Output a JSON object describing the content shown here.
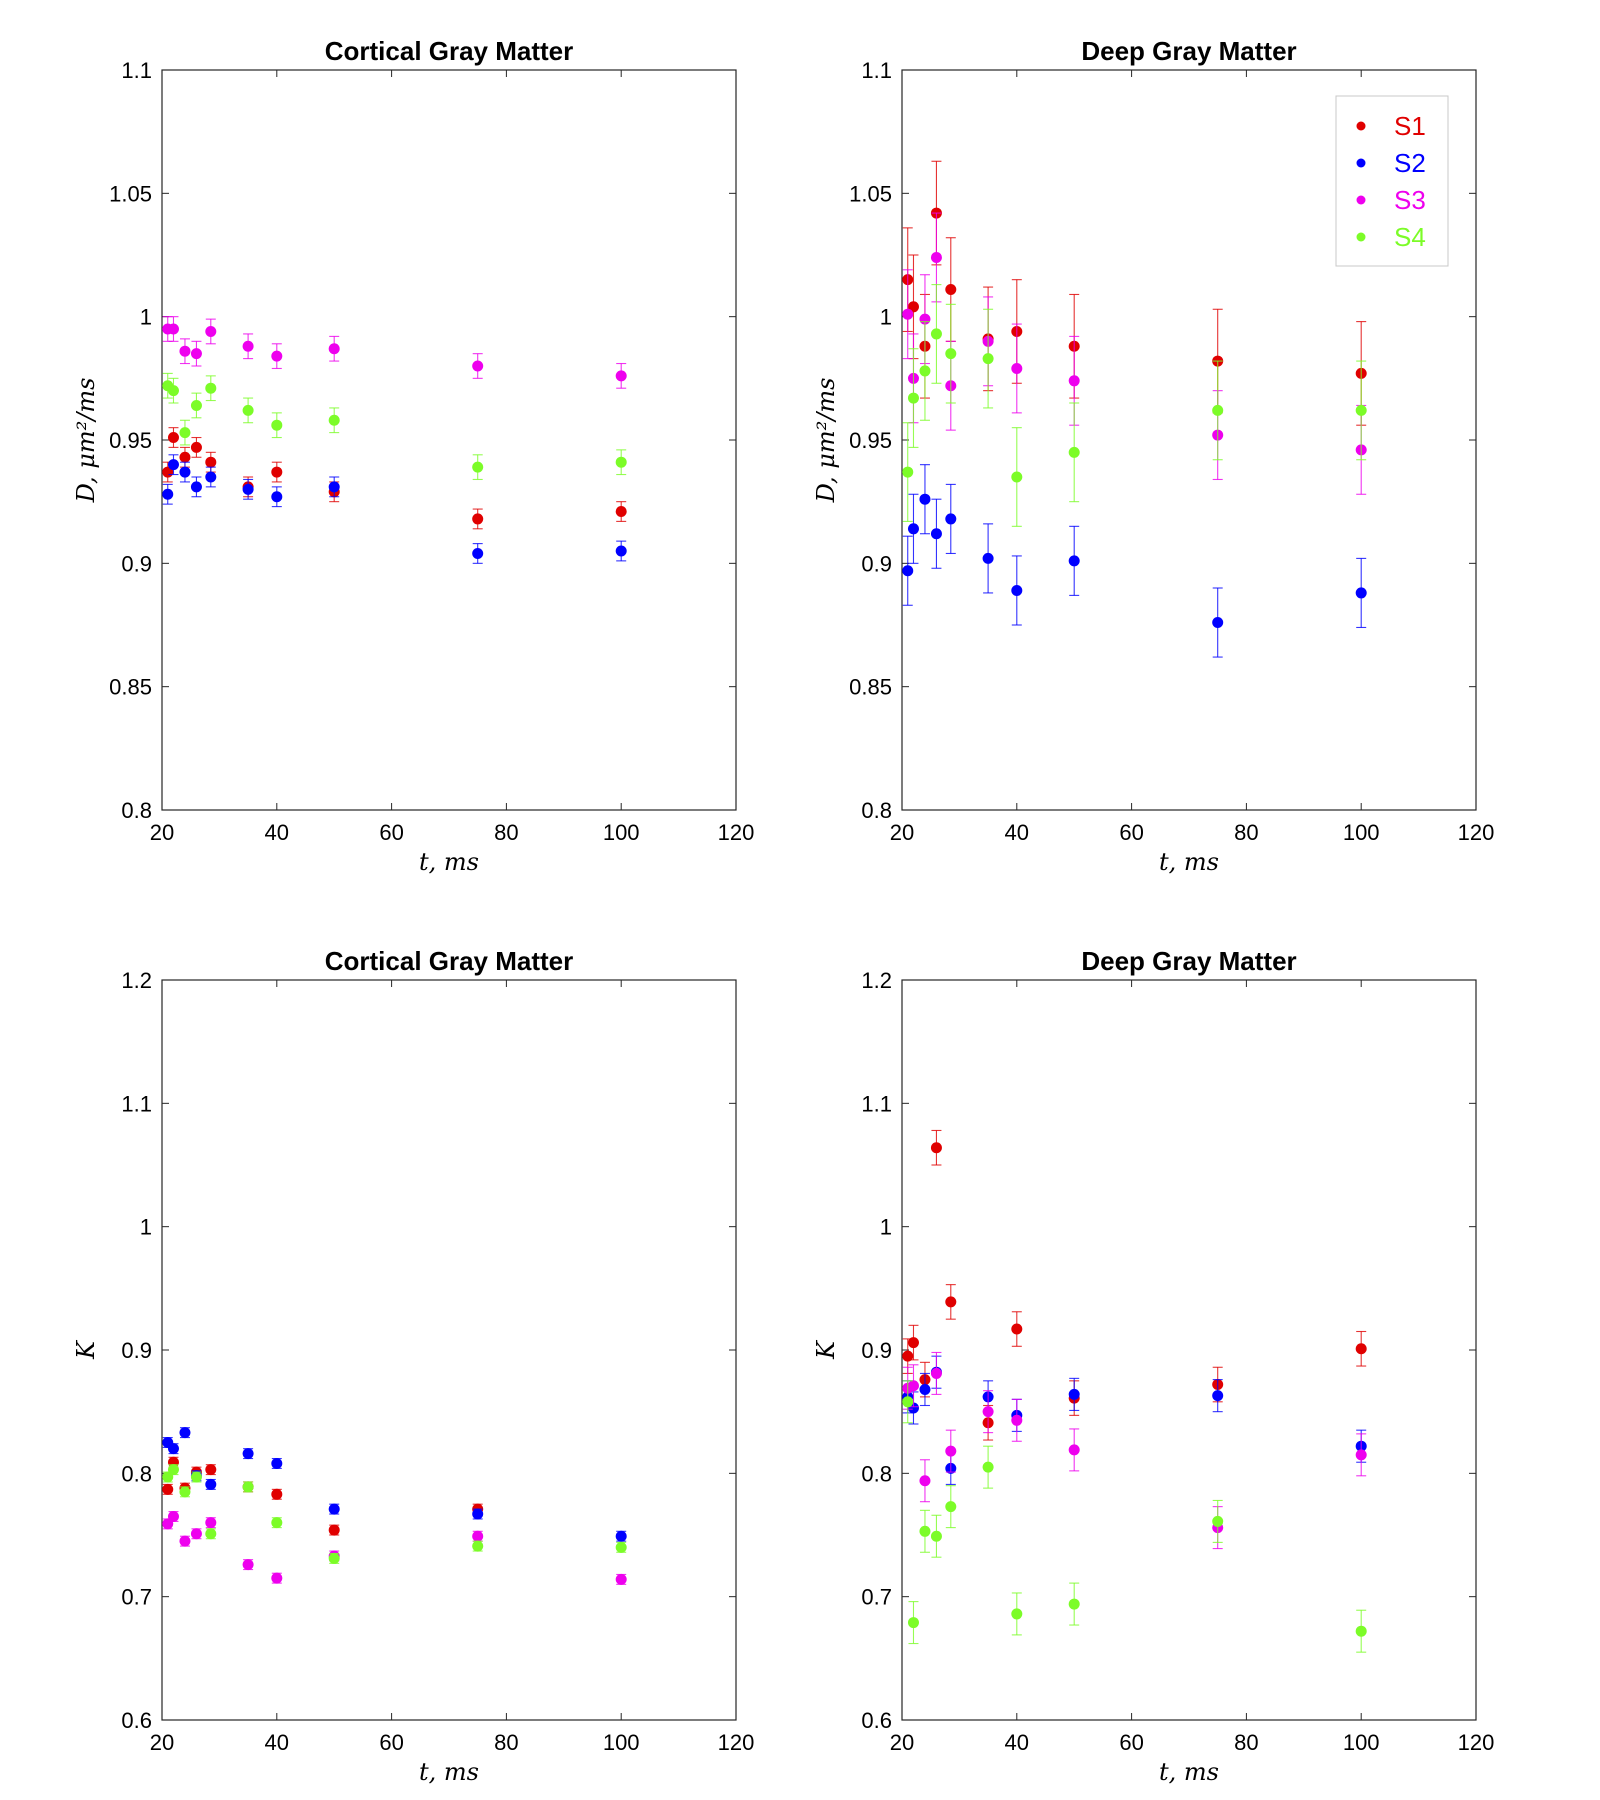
{
  "colors": {
    "S1": "#e00000",
    "S2": "#0000ff",
    "S3": "#ee00ee",
    "S4": "#7cfc28"
  },
  "x_axis": {
    "label": "t, ms",
    "ticks": [
      "20",
      "40",
      "60",
      "80",
      "100",
      "120"
    ],
    "xlim": [
      20,
      120
    ]
  },
  "x": [
    21,
    22,
    24,
    26,
    28.5,
    35,
    40,
    50,
    75,
    100
  ],
  "legend": {
    "entries": [
      "S1",
      "S2",
      "S3",
      "S4"
    ],
    "placement": "top-right of Deep Gray Matter D panel"
  },
  "chart_data": [
    {
      "type": "scatter",
      "title": "Cortical Gray Matter",
      "ylabel": "D, μm²/ms",
      "ylim": [
        0.8,
        1.1
      ],
      "yticks": [
        "0.8",
        "0.85",
        "0.9",
        "0.95",
        "1",
        "1.05",
        "1.1"
      ],
      "series": [
        {
          "name": "S1",
          "values": [
            0.937,
            0.951,
            0.943,
            0.947,
            0.941,
            0.931,
            0.937,
            0.929,
            0.918,
            0.921
          ],
          "errors": [
            0.004,
            0.004,
            0.004,
            0.004,
            0.004,
            0.004,
            0.004,
            0.004,
            0.004,
            0.004
          ]
        },
        {
          "name": "S2",
          "values": [
            0.928,
            0.94,
            0.937,
            0.931,
            0.935,
            0.93,
            0.927,
            0.931,
            0.904,
            0.905
          ],
          "errors": [
            0.004,
            0.004,
            0.004,
            0.004,
            0.004,
            0.004,
            0.004,
            0.004,
            0.004,
            0.004
          ]
        },
        {
          "name": "S3",
          "values": [
            0.995,
            0.995,
            0.986,
            0.985,
            0.994,
            0.988,
            0.984,
            0.987,
            0.98,
            0.976
          ],
          "errors": [
            0.005,
            0.005,
            0.005,
            0.005,
            0.005,
            0.005,
            0.005,
            0.005,
            0.005,
            0.005
          ]
        },
        {
          "name": "S4",
          "values": [
            0.972,
            0.97,
            0.953,
            0.964,
            0.971,
            0.962,
            0.956,
            0.958,
            0.939,
            0.941
          ],
          "errors": [
            0.005,
            0.005,
            0.005,
            0.005,
            0.005,
            0.005,
            0.005,
            0.005,
            0.005,
            0.005
          ]
        }
      ]
    },
    {
      "type": "scatter",
      "title": "Deep Gray Matter",
      "ylabel": "D, μm²/ms",
      "ylim": [
        0.8,
        1.1
      ],
      "yticks": [
        "0.8",
        "0.85",
        "0.9",
        "0.95",
        "1",
        "1.05",
        "1.1"
      ],
      "series": [
        {
          "name": "S1",
          "values": [
            1.015,
            1.004,
            0.988,
            1.042,
            1.011,
            0.991,
            0.994,
            0.988,
            0.982,
            0.977
          ],
          "errors": [
            0.021,
            0.021,
            0.021,
            0.021,
            0.021,
            0.021,
            0.021,
            0.021,
            0.021,
            0.021
          ]
        },
        {
          "name": "S2",
          "values": [
            0.897,
            0.914,
            0.926,
            0.912,
            0.918,
            0.902,
            0.889,
            0.901,
            0.876,
            0.888
          ],
          "errors": [
            0.014,
            0.014,
            0.014,
            0.014,
            0.014,
            0.014,
            0.014,
            0.014,
            0.014,
            0.014
          ]
        },
        {
          "name": "S3",
          "values": [
            1.001,
            0.975,
            0.999,
            1.024,
            0.972,
            0.99,
            0.979,
            0.974,
            0.952,
            0.946
          ],
          "errors": [
            0.018,
            0.018,
            0.018,
            0.018,
            0.018,
            0.018,
            0.018,
            0.018,
            0.018,
            0.018
          ]
        },
        {
          "name": "S4",
          "values": [
            0.937,
            0.967,
            0.978,
            0.993,
            0.985,
            0.983,
            0.935,
            0.945,
            0.962,
            0.962
          ],
          "errors": [
            0.02,
            0.02,
            0.02,
            0.02,
            0.02,
            0.02,
            0.02,
            0.02,
            0.02,
            0.02
          ]
        }
      ]
    },
    {
      "type": "scatter",
      "title": "Cortical Gray Matter",
      "ylabel": "K",
      "ylim": [
        0.6,
        1.2
      ],
      "yticks": [
        "0.6",
        "0.7",
        "0.8",
        "0.9",
        "1",
        "1.1",
        "1.2"
      ],
      "series": [
        {
          "name": "S1",
          "values": [
            0.787,
            0.809,
            0.788,
            0.801,
            0.803,
            0.789,
            0.783,
            0.754,
            0.771,
            null
          ],
          "errors": [
            0.004,
            0.004,
            0.004,
            0.004,
            0.004,
            0.004,
            0.004,
            0.004,
            0.004,
            0.004
          ]
        },
        {
          "name": "S2",
          "values": [
            0.825,
            0.82,
            0.833,
            0.798,
            0.791,
            0.816,
            0.808,
            0.771,
            0.767,
            0.749
          ],
          "errors": [
            0.004,
            0.004,
            0.004,
            0.004,
            0.004,
            0.004,
            0.004,
            0.004,
            0.004,
            0.004
          ]
        },
        {
          "name": "S3",
          "values": [
            0.759,
            0.765,
            0.745,
            0.751,
            0.76,
            0.726,
            0.715,
            0.733,
            0.749,
            0.714
          ],
          "errors": [
            0.004,
            0.004,
            0.004,
            0.004,
            0.004,
            0.004,
            0.004,
            0.004,
            0.004,
            0.004
          ]
        },
        {
          "name": "S4",
          "values": [
            0.797,
            0.803,
            0.785,
            0.797,
            0.751,
            0.789,
            0.76,
            0.731,
            0.741,
            0.74
          ],
          "errors": [
            0.004,
            0.004,
            0.004,
            0.004,
            0.004,
            0.004,
            0.004,
            0.004,
            0.004,
            0.004
          ]
        }
      ]
    },
    {
      "type": "scatter",
      "title": "Deep Gray Matter",
      "ylabel": "K",
      "ylim": [
        0.6,
        1.2
      ],
      "yticks": [
        "0.6",
        "0.7",
        "0.8",
        "0.9",
        "1",
        "1.1",
        "1.2"
      ],
      "series": [
        {
          "name": "S1",
          "values": [
            0.895,
            0.906,
            0.876,
            1.064,
            0.939,
            0.841,
            0.917,
            0.861,
            0.872,
            0.901
          ],
          "errors": [
            0.014,
            0.014,
            0.014,
            0.014,
            0.014,
            0.014,
            0.014,
            0.014,
            0.014,
            0.014
          ]
        },
        {
          "name": "S2",
          "values": [
            0.862,
            0.853,
            0.868,
            0.882,
            0.804,
            0.862,
            0.847,
            0.864,
            0.863,
            0.822
          ],
          "errors": [
            0.013,
            0.013,
            0.013,
            0.013,
            0.013,
            0.013,
            0.013,
            0.013,
            0.013,
            0.013
          ]
        },
        {
          "name": "S3",
          "values": [
            0.869,
            0.871,
            0.794,
            0.881,
            0.818,
            0.85,
            0.843,
            0.819,
            0.756,
            0.815
          ],
          "errors": [
            0.017,
            0.017,
            0.017,
            0.017,
            0.017,
            0.017,
            0.017,
            0.017,
            0.017,
            0.017
          ]
        },
        {
          "name": "S4",
          "values": [
            0.858,
            0.679,
            0.753,
            0.749,
            0.773,
            0.805,
            0.686,
            0.694,
            0.761,
            0.672
          ],
          "errors": [
            0.017,
            0.017,
            0.017,
            0.017,
            0.017,
            0.017,
            0.017,
            0.017,
            0.017,
            0.017
          ]
        }
      ]
    }
  ]
}
